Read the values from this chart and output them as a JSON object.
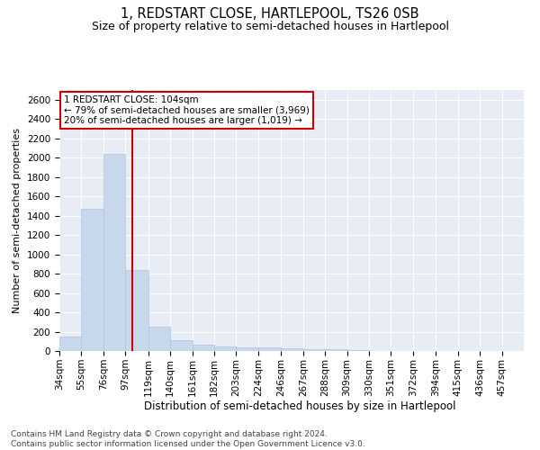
{
  "title": "1, REDSTART CLOSE, HARTLEPOOL, TS26 0SB",
  "subtitle": "Size of property relative to semi-detached houses in Hartlepool",
  "xlabel": "Distribution of semi-detached houses by size in Hartlepool",
  "ylabel": "Number of semi-detached properties",
  "bin_labels": [
    "34sqm",
    "55sqm",
    "76sqm",
    "97sqm",
    "119sqm",
    "140sqm",
    "161sqm",
    "182sqm",
    "203sqm",
    "224sqm",
    "246sqm",
    "267sqm",
    "288sqm",
    "309sqm",
    "330sqm",
    "351sqm",
    "372sqm",
    "394sqm",
    "415sqm",
    "436sqm",
    "457sqm"
  ],
  "bin_edges": [
    34,
    55,
    76,
    97,
    119,
    140,
    161,
    182,
    203,
    224,
    246,
    267,
    288,
    309,
    330,
    351,
    372,
    394,
    415,
    436,
    457,
    478
  ],
  "bar_heights": [
    150,
    1470,
    2040,
    835,
    255,
    115,
    65,
    45,
    35,
    35,
    30,
    20,
    15,
    5,
    3,
    2,
    1,
    1,
    0,
    0,
    0
  ],
  "bar_color": "#c8d8ec",
  "bar_edgecolor": "#b0c4de",
  "property_size": 104,
  "red_line_color": "#cc0000",
  "annotation_line1": "1 REDSTART CLOSE: 104sqm",
  "annotation_line2": "← 79% of semi-detached houses are smaller (3,969)",
  "annotation_line3": "20% of semi-detached houses are larger (1,019) →",
  "annotation_box_color": "#ffffff",
  "annotation_box_edgecolor": "#cc0000",
  "ylim": [
    0,
    2700
  ],
  "yticks": [
    0,
    200,
    400,
    600,
    800,
    1000,
    1200,
    1400,
    1600,
    1800,
    2000,
    2200,
    2400,
    2600
  ],
  "background_color": "#e8edf5",
  "footer_line1": "Contains HM Land Registry data © Crown copyright and database right 2024.",
  "footer_line2": "Contains public sector information licensed under the Open Government Licence v3.0.",
  "title_fontsize": 10.5,
  "subtitle_fontsize": 9,
  "xlabel_fontsize": 8.5,
  "ylabel_fontsize": 8,
  "tick_fontsize": 7.5,
  "footer_fontsize": 6.5,
  "annot_fontsize": 7.5
}
